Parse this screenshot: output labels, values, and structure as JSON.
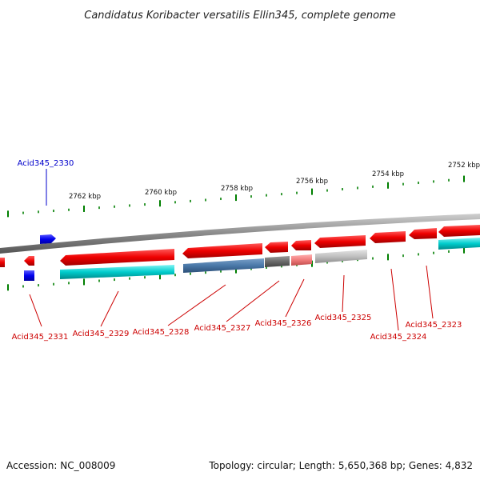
{
  "title": "Candidatus Koribacter versatilis Ellin345, complete genome",
  "footer": {
    "accession": "Accession: NC_008009",
    "topology": "Topology: circular; Length: 5,650,368 bp; Genes: 4,832"
  },
  "colors": {
    "forward_gene": "#e8000b",
    "reverse_gene": "#e8000b",
    "reverse_blue_label": "#0000cc",
    "cds_cyan": "#00c8c8",
    "tick": "#007f00",
    "backbone": "#888888",
    "label_red": "#cc0000"
  },
  "scale_labels": [
    "2762 kbp",
    "2760 kbp",
    "2758 kbp",
    "2756 kbp",
    "2754 kbp",
    "2752 kbp"
  ],
  "gene_labels": [
    {
      "name": "Acid345_2330",
      "color": "blue"
    },
    {
      "name": "Acid345_2331",
      "color": "red"
    },
    {
      "name": "Acid345_2329",
      "color": "red"
    },
    {
      "name": "Acid345_2328",
      "color": "red"
    },
    {
      "name": "Acid345_2327",
      "color": "red"
    },
    {
      "name": "Acid345_2326",
      "color": "red"
    },
    {
      "name": "Acid345_2325",
      "color": "red"
    },
    {
      "name": "Acid345_2324",
      "color": "red"
    },
    {
      "name": "Acid345_2323",
      "color": "red"
    }
  ]
}
